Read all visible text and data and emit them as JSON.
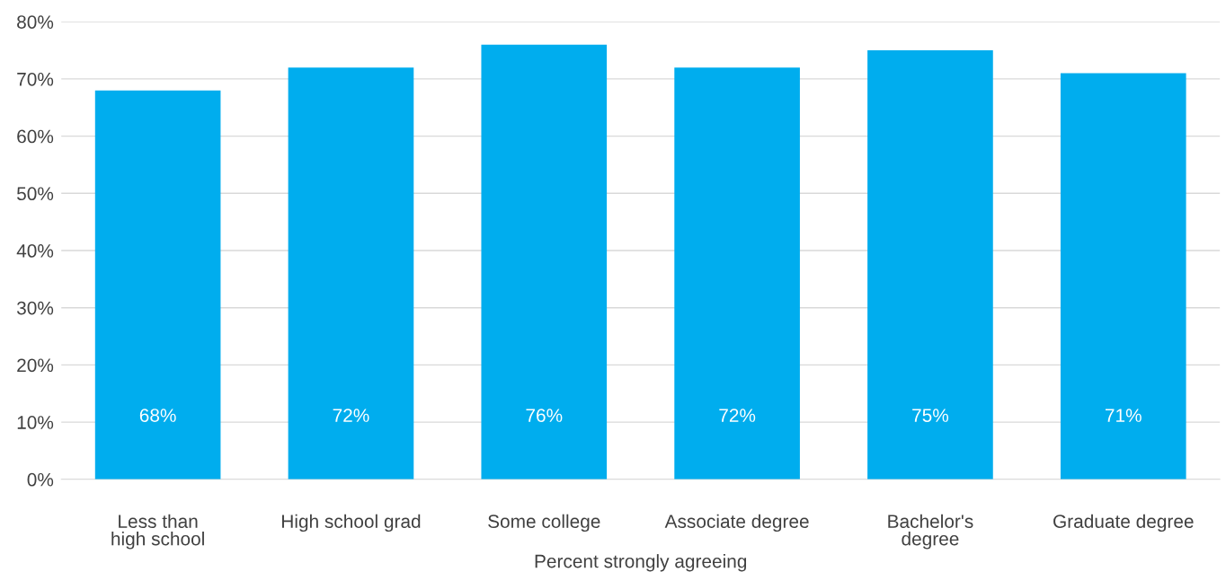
{
  "chart_data": {
    "type": "bar",
    "xlabel": "Percent strongly agreeing",
    "categories": [
      "Less than\nhigh school",
      "High school grad",
      "Some college",
      "Associate degree",
      "Bachelor's\ndegree",
      "Graduate degree"
    ],
    "values": [
      68,
      72,
      76,
      72,
      75,
      71
    ],
    "value_labels": [
      "68%",
      "72%",
      "76%",
      "72%",
      "75%",
      "71%"
    ],
    "color": "#00adee",
    "ylim": [
      0,
      80
    ],
    "yticks": [
      {
        "value": 0,
        "label": "0%"
      },
      {
        "value": 10,
        "label": "10%"
      },
      {
        "value": 20,
        "label": "20%"
      },
      {
        "value": 30,
        "label": "30%"
      },
      {
        "value": 40,
        "label": "40%"
      },
      {
        "value": 50,
        "label": "50%"
      },
      {
        "value": 60,
        "label": "60%"
      },
      {
        "value": 70,
        "label": "70%"
      },
      {
        "value": 80,
        "label": "80%"
      }
    ],
    "grid": "y",
    "legend": false
  }
}
